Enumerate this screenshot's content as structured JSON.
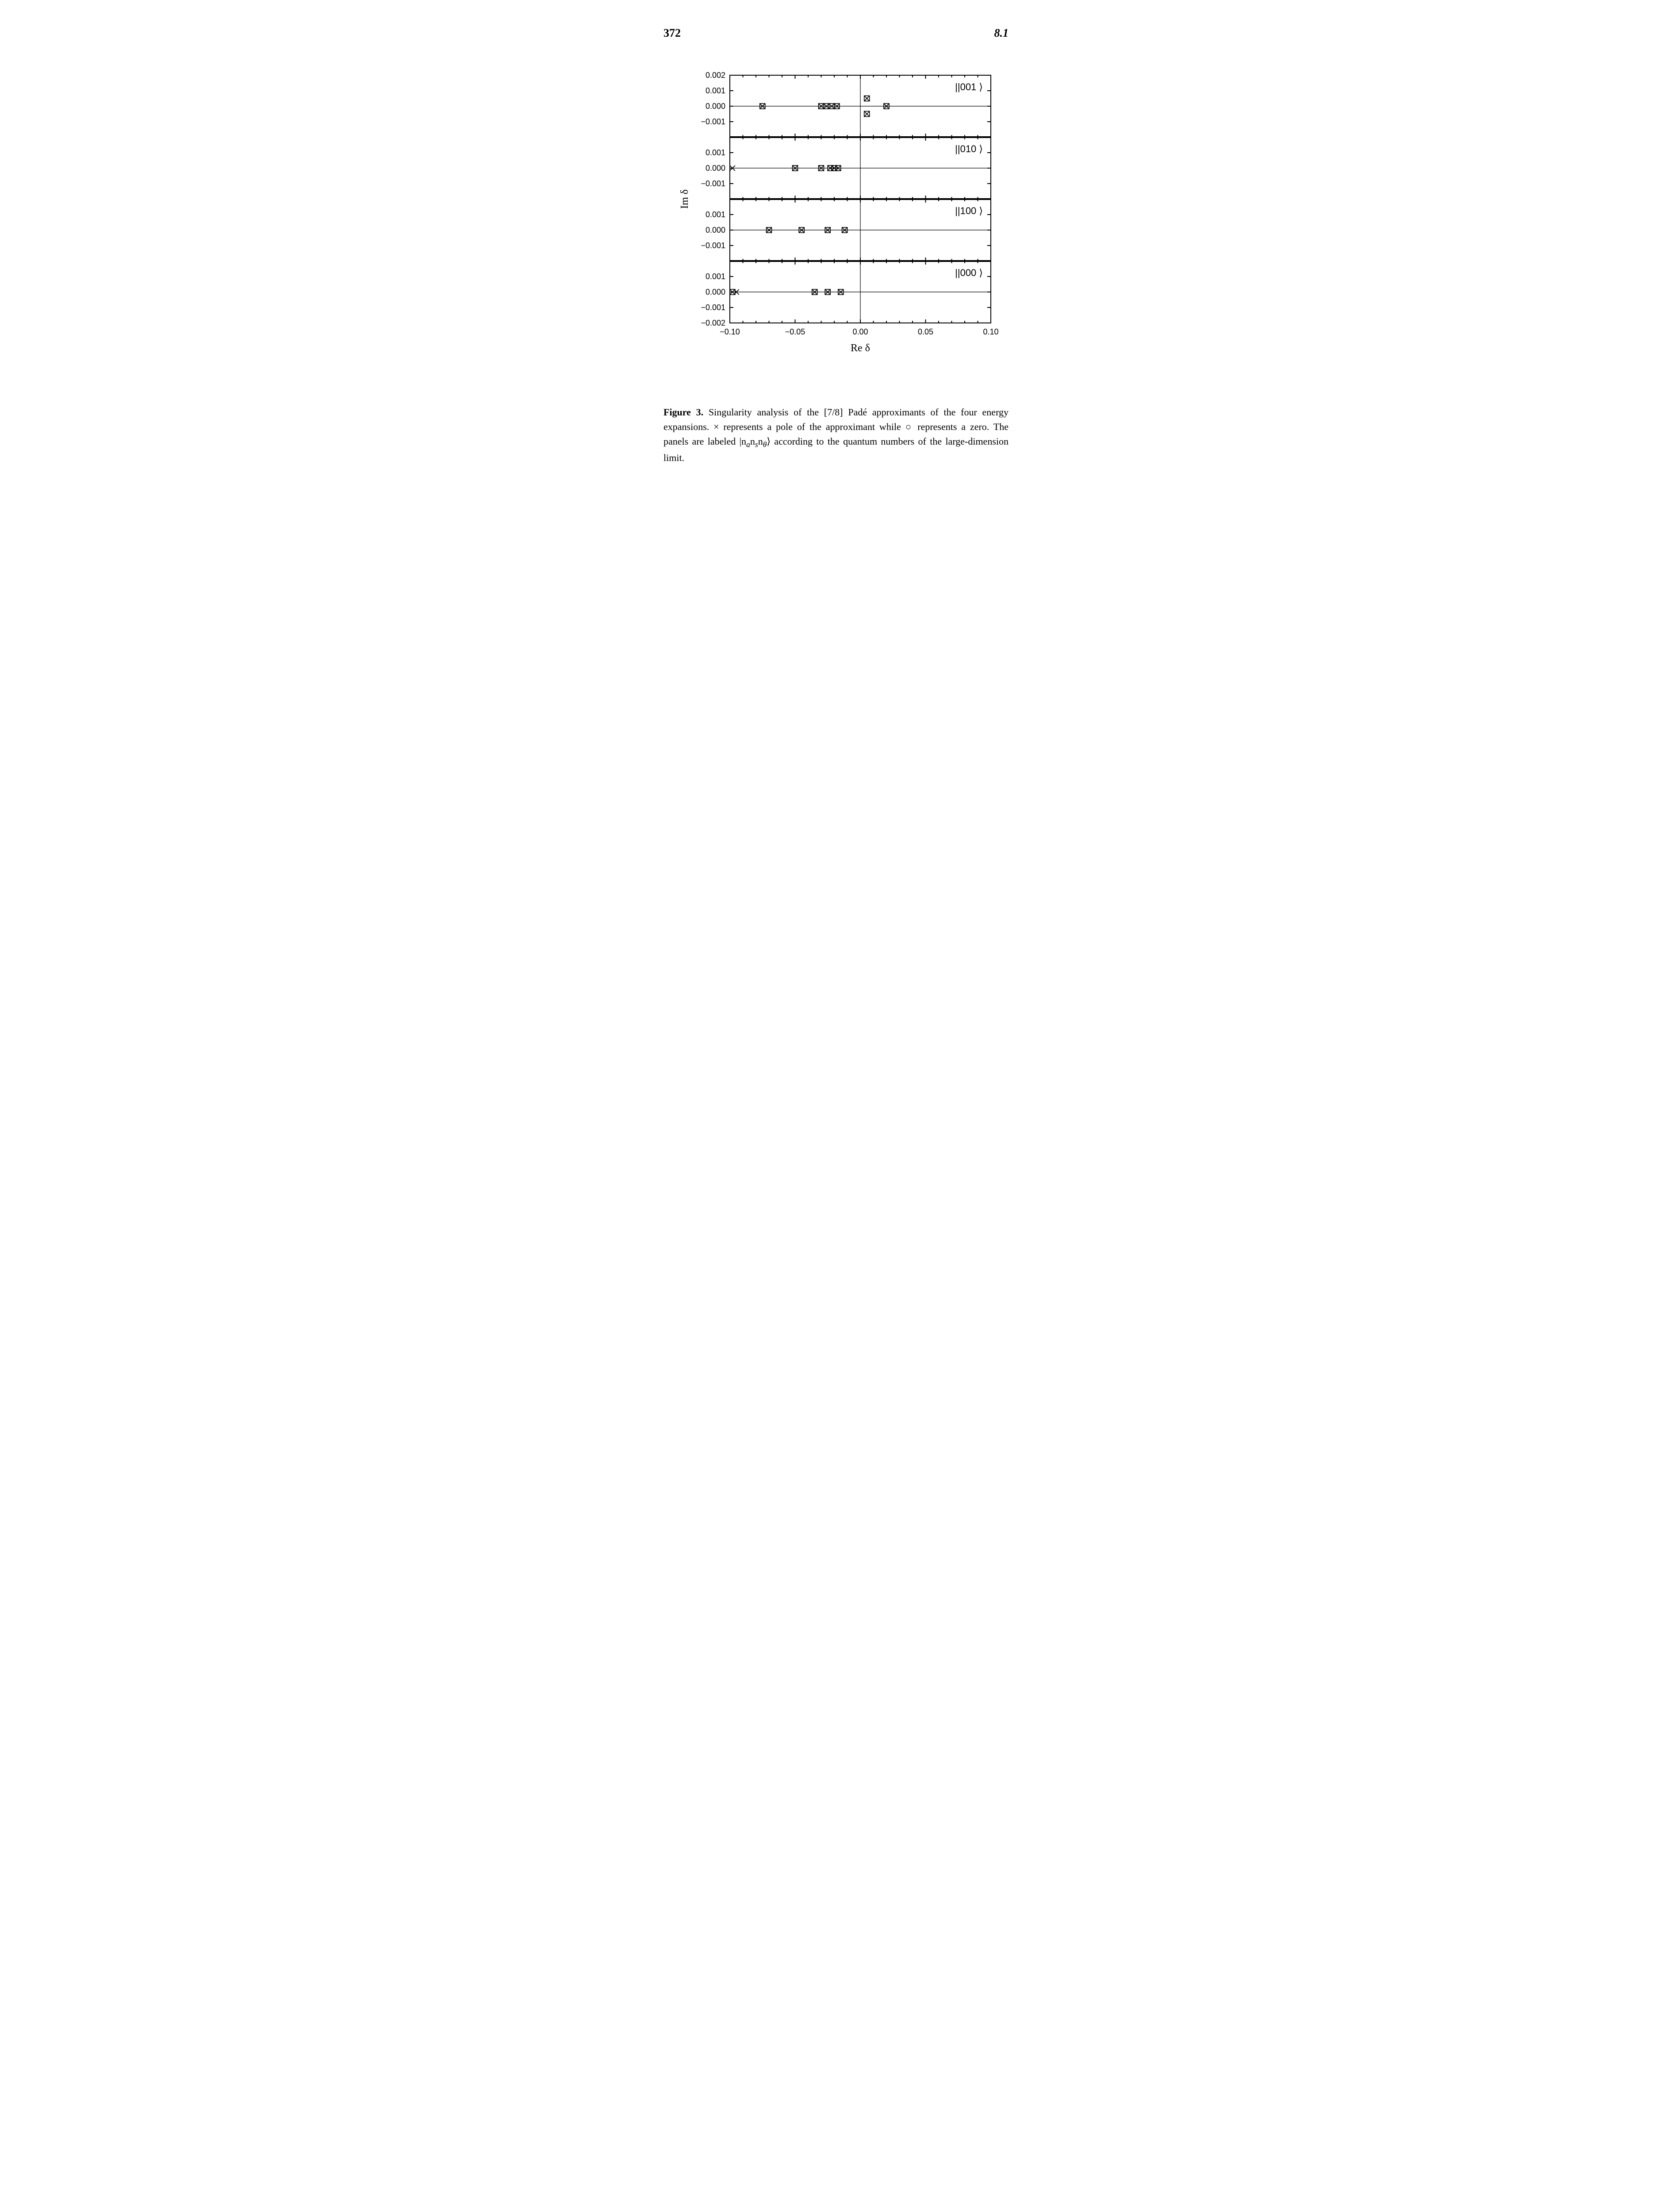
{
  "header": {
    "page_number": "372",
    "section": "8.1"
  },
  "figure": {
    "type": "scatter-panels",
    "background_color": "#ffffff",
    "axis_color": "#000000",
    "line_width": 2,
    "tick_length": 8,
    "xlabel": "Re δ",
    "ylabel": "Im δ",
    "xlabel_fontsize": 24,
    "ylabel_fontsize": 24,
    "tick_fontsize": 18,
    "panel_label_fontsize": 22,
    "xlim": [
      -0.1,
      0.1
    ],
    "xtick_positions": [
      -0.1,
      -0.05,
      0.0,
      0.05,
      0.1
    ],
    "xtick_labels": [
      "−0.10",
      "−0.05",
      "0.00",
      "0.05",
      "0.10"
    ],
    "x_minor_count_between": 4,
    "ylim": [
      -0.002,
      0.002
    ],
    "ytick_positions_top": [
      0.002,
      0.001,
      0.0,
      -0.001
    ],
    "ytick_labels_top": [
      "0.002",
      "0.001",
      "0.000",
      "−0.001"
    ],
    "ytick_positions_mid": [
      0.001,
      0.0,
      -0.001
    ],
    "ytick_labels_mid": [
      "0.001",
      "0.000",
      "−0.001"
    ],
    "ytick_positions_bottom": [
      0.001,
      0.0,
      -0.001,
      -0.002
    ],
    "ytick_labels_bottom": [
      "0.001",
      "0.000",
      "−0.001",
      "−0.002"
    ],
    "marker_size": 6,
    "marker_stroke": "#000000",
    "panels": [
      {
        "label": "||001 ⟩",
        "poles": [
          [
            -0.075,
            0.0
          ],
          [
            -0.03,
            0.0
          ],
          [
            -0.026,
            0.0
          ],
          [
            -0.022,
            0.0
          ],
          [
            -0.018,
            0.0
          ],
          [
            0.005,
            0.0005
          ],
          [
            0.005,
            -0.0005
          ],
          [
            0.02,
            0.0
          ]
        ],
        "zeros": [
          [
            -0.075,
            0.0
          ],
          [
            -0.03,
            0.0
          ],
          [
            -0.026,
            0.0
          ],
          [
            -0.022,
            0.0
          ],
          [
            -0.018,
            0.0
          ],
          [
            0.005,
            0.0005
          ],
          [
            0.005,
            -0.0005
          ],
          [
            0.02,
            0.0
          ]
        ]
      },
      {
        "label": "||010 ⟩",
        "poles": [
          [
            -0.098,
            0.0
          ],
          [
            -0.05,
            0.0
          ],
          [
            -0.03,
            0.0
          ],
          [
            -0.023,
            0.0
          ],
          [
            -0.02,
            0.0
          ],
          [
            -0.017,
            0.0
          ]
        ],
        "zeros": [
          [
            -0.05,
            0.0
          ],
          [
            -0.03,
            0.0
          ],
          [
            -0.023,
            0.0
          ],
          [
            -0.02,
            0.0
          ],
          [
            -0.017,
            0.0
          ]
        ]
      },
      {
        "label": "||100 ⟩",
        "poles": [
          [
            -0.07,
            0.0
          ],
          [
            -0.045,
            0.0
          ],
          [
            -0.025,
            0.0
          ],
          [
            -0.012,
            0.0
          ]
        ],
        "zeros": [
          [
            -0.07,
            0.0
          ],
          [
            -0.045,
            0.0
          ],
          [
            -0.025,
            0.0
          ],
          [
            -0.012,
            0.0
          ]
        ]
      },
      {
        "label": "||000 ⟩",
        "poles": [
          [
            -0.098,
            0.0
          ],
          [
            -0.095,
            0.0
          ],
          [
            -0.035,
            0.0
          ],
          [
            -0.025,
            0.0
          ],
          [
            -0.015,
            0.0
          ]
        ],
        "zeros": [
          [
            -0.098,
            0.0
          ],
          [
            -0.035,
            0.0
          ],
          [
            -0.025,
            0.0
          ],
          [
            -0.015,
            0.0
          ]
        ]
      }
    ]
  },
  "caption": {
    "label": "Figure 3.",
    "text_before_ket": " Singularity analysis of the [7/8] Padé approximants of the four energy expansions. × represents a pole of the approximant while ○ represents a zero. The panels are labeled ",
    "ket_base": "|n",
    "ket_sub_a": "a",
    "ket_mid1": "n",
    "ket_sub_s": "s",
    "ket_mid2": "n",
    "ket_sub_th": "θ",
    "ket_close": "⟩",
    "text_after_ket": " according to the quantum numbers of the large-dimension limit."
  }
}
